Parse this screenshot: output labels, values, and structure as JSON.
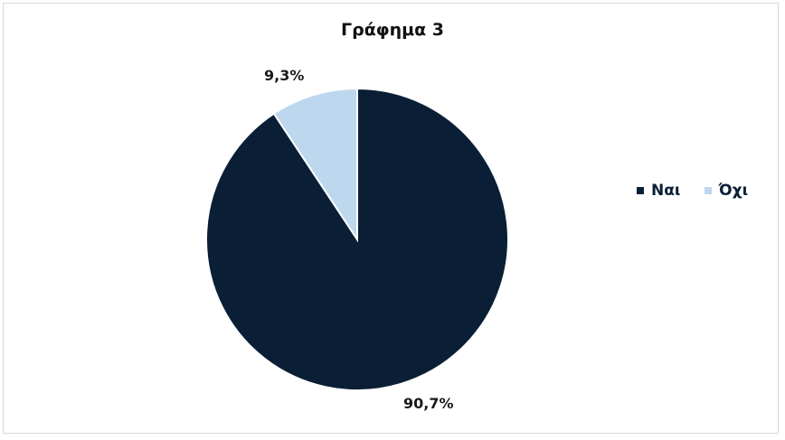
{
  "chart_data": {
    "type": "pie",
    "title": "Γράφημα 3",
    "categories": [
      "Ναι",
      "Όχι"
    ],
    "values": [
      90.7,
      9.3
    ],
    "data_labels": [
      "90,7%",
      "9,3%"
    ],
    "colors": [
      "#0a1f36",
      "#bdd7ee"
    ],
    "legend_position": "right"
  }
}
